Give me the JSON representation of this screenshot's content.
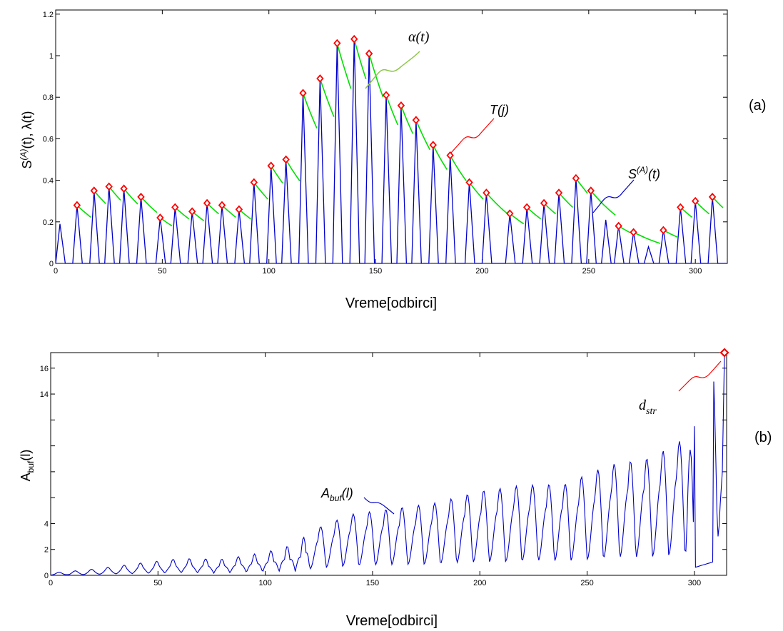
{
  "chart_data": [
    {
      "type": "line",
      "panel_label": "(a)",
      "xlabel": "Vreme[odbirci]",
      "ylabel": "S(A)(t), λ(t)",
      "ylabel_main": "S",
      "ylabel_sup": "(A)",
      "ylabel_rest": "(t), λ(t)",
      "xlim": [
        0,
        315
      ],
      "ylim": [
        0,
        1.22
      ],
      "xticks": [
        0,
        50,
        100,
        150,
        200,
        250,
        300
      ],
      "yticks": [
        0,
        0.2,
        0.4,
        0.6,
        0.8,
        1,
        1.2
      ],
      "xtick_labels": [
        "0",
        "50",
        "100",
        "150",
        "200",
        "250",
        "300"
      ],
      "ytick_labels": [
        "0",
        "0.2",
        "0.4",
        "0.6",
        "0.8",
        "1",
        "1.2"
      ],
      "peaks": {
        "x": [
          2,
          10,
          18,
          25,
          32,
          40,
          49,
          56,
          64,
          71,
          78,
          86,
          93,
          101,
          108,
          116,
          124,
          132,
          140,
          147,
          155,
          162,
          169,
          177,
          185,
          194,
          202,
          213,
          221,
          229,
          236,
          244,
          251,
          258,
          264,
          271,
          278,
          285,
          293,
          300,
          308
        ],
        "s": [
          0.19,
          0.28,
          0.35,
          0.37,
          0.36,
          0.32,
          0.22,
          0.27,
          0.25,
          0.29,
          0.28,
          0.26,
          0.39,
          0.47,
          0.5,
          0.82,
          0.89,
          1.06,
          1.08,
          1.01,
          0.81,
          0.76,
          0.69,
          0.57,
          0.52,
          0.39,
          0.34,
          0.24,
          0.27,
          0.29,
          0.34,
          0.41,
          0.35,
          0.21,
          0.18,
          0.15,
          0.08,
          0.16,
          0.27,
          0.3,
          0.32
        ],
        "detected": [
          false,
          true,
          true,
          true,
          true,
          true,
          true,
          true,
          true,
          true,
          true,
          true,
          true,
          true,
          true,
          true,
          true,
          true,
          true,
          true,
          true,
          true,
          true,
          true,
          true,
          true,
          true,
          true,
          true,
          true,
          true,
          true,
          true,
          false,
          true,
          true,
          false,
          true,
          true,
          true,
          true
        ]
      },
      "envelope_decay_per_sample": 0.965,
      "series": [
        {
          "name": "S(A)(t)",
          "color": "#0000cc"
        },
        {
          "name": "λ(t)",
          "color": "#00e000"
        },
        {
          "name": "T(j)",
          "color": "#ff0000"
        }
      ],
      "annotations": {
        "alpha": "α(t)",
        "T": "T(j)",
        "S_main": "S",
        "S_sup": "(A)",
        "S_rest": "(t)"
      }
    },
    {
      "type": "line",
      "panel_label": "(b)",
      "xlabel": "Vreme[odbirci]",
      "ylabel_main": "A",
      "ylabel_sub": "buf",
      "ylabel_rest": "(l)",
      "xlim": [
        0,
        315
      ],
      "ylim": [
        0,
        17.2
      ],
      "xticks": [
        0,
        50,
        100,
        150,
        200,
        250,
        300
      ],
      "xtick_labels": [
        "0",
        "50",
        "100",
        "150",
        "200",
        "250",
        "300"
      ],
      "yticks": [
        0,
        2,
        4,
        6,
        8,
        10,
        12,
        14,
        16
      ],
      "ytick_labels": [
        "0",
        "2",
        "4",
        "",
        "",
        "",
        "",
        "14",
        "16"
      ],
      "env_points": {
        "x": [
          0,
          20,
          40,
          60,
          80,
          100,
          115,
          125,
          140,
          160,
          180,
          200,
          220,
          240,
          260,
          280,
          295,
          305,
          312
        ],
        "y": [
          0.2,
          0.5,
          0.9,
          1.2,
          1.1,
          1.5,
          2.0,
          3.3,
          4.2,
          4.6,
          5.0,
          5.8,
          6.2,
          6.3,
          7.6,
          8.1,
          9.4,
          12.5,
          17.2
        ]
      },
      "final_point": {
        "x": 314,
        "y": 17.2
      },
      "series": [
        {
          "name": "Abuf(l)",
          "color": "#0000cc"
        },
        {
          "name": "dstr",
          "color": "#ff0000"
        }
      ],
      "annotations": {
        "abuf_main": "A",
        "abuf_sub": "buf",
        "abuf_rest": "(l)",
        "dstr_main": "d",
        "dstr_sub": "str"
      }
    }
  ]
}
